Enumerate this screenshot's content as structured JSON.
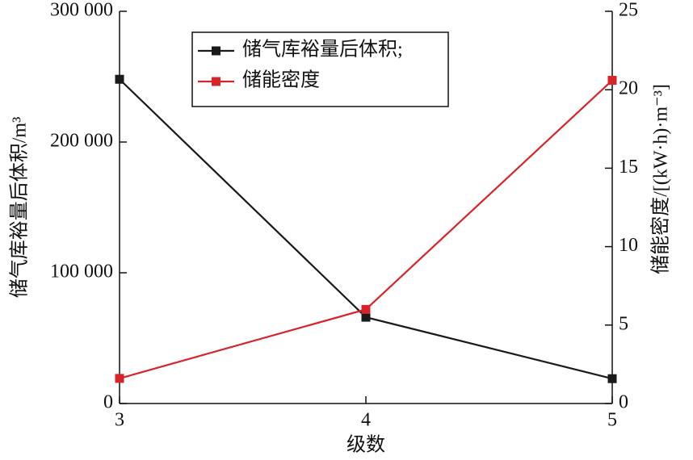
{
  "chart_data": {
    "type": "line",
    "x_label": "级数",
    "y_label": "储气库裕量后体积/m³",
    "y2_label": "储能密度/[(kW·h)·m⁻³]",
    "x": [
      3,
      4,
      5
    ],
    "xlim": [
      3,
      5
    ],
    "xticks": [
      3,
      4,
      5
    ],
    "ylim": [
      0,
      300000
    ],
    "yticks": [
      0,
      {
        "value": 100000,
        "label": "100 000"
      },
      {
        "value": 200000,
        "label": "200 000"
      },
      {
        "value": 300000,
        "label": "300 000"
      }
    ],
    "y2lim": [
      0,
      25
    ],
    "y2ticks": [
      0,
      5,
      10,
      15,
      20,
      25
    ],
    "legend": "upper left",
    "series": [
      {
        "name": "储气库裕量后体积;",
        "color": "#1a1a1a",
        "values": [
          248000,
          66000,
          19000
        ]
      },
      {
        "name": "储能密度",
        "color": "#d9232a",
        "axis": "y2",
        "values": [
          1.6,
          6.0,
          20.6
        ]
      }
    ]
  }
}
